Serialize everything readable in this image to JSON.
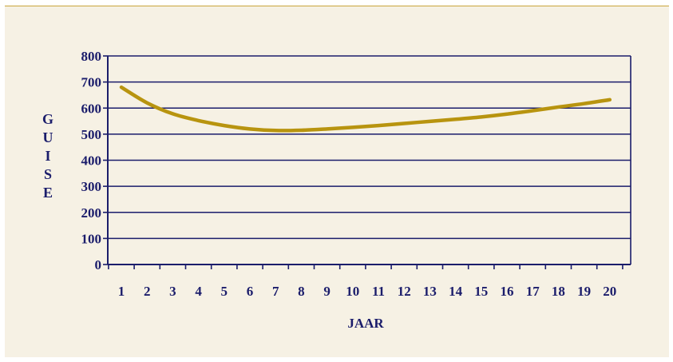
{
  "chart_data": {
    "type": "line",
    "xlabel": "JAAR",
    "ylabel": "GUISE",
    "x": [
      1,
      2,
      3,
      4,
      5,
      6,
      7,
      8,
      9,
      10,
      11,
      12,
      13,
      14,
      15,
      16,
      17,
      18,
      19,
      20
    ],
    "x_tick_labels": [
      "1",
      "2",
      "3",
      "4",
      "5",
      "6",
      "7",
      "8",
      "9",
      "10",
      "11",
      "12",
      "13",
      "14",
      "15",
      "16",
      "17",
      "18",
      "19",
      "20"
    ],
    "y_tick_labels": [
      "0",
      "100",
      "200",
      "300",
      "400",
      "500",
      "600",
      "700",
      "800"
    ],
    "ylim": [
      0,
      800
    ],
    "grid": "horizontal",
    "series": [
      {
        "values": [
          680,
          620,
          578,
          552,
          533,
          520,
          514,
          515,
          520,
          526,
          533,
          541,
          549,
          557,
          566,
          577,
          590,
          604,
          617,
          632
        ]
      }
    ]
  },
  "colors": {
    "background": "#f6f1e4",
    "axis": "#1b1d6b",
    "line": "#b8940f",
    "text": "#1b1d6b"
  }
}
